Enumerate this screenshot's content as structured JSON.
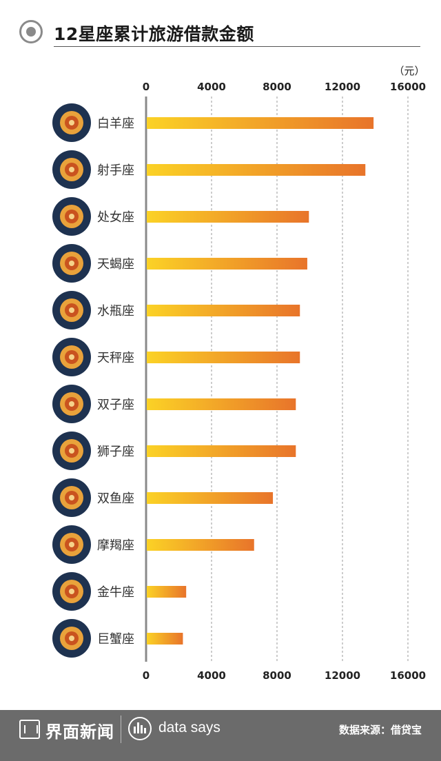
{
  "header": {
    "title": "12星座累计旅游借款金额"
  },
  "chart_data": {
    "type": "bar",
    "orientation": "horizontal",
    "title": "12星座累计旅游借款金额",
    "unit": "（元）",
    "xlim": [
      0,
      16000
    ],
    "ticks": [
      "0",
      "4000",
      "8000",
      "12000",
      "16000"
    ],
    "grid": true,
    "categories": [
      "白羊座",
      "射手座",
      "处女座",
      "天蝎座",
      "水瓶座",
      "天秤座",
      "双子座",
      "狮子座",
      "双鱼座",
      "摩羯座",
      "金牛座",
      "巨蟹座"
    ],
    "icons": [
      "aries-icon",
      "sagittarius-icon",
      "virgo-icon",
      "scorpio-icon",
      "aquarius-icon",
      "libra-icon",
      "gemini-icon",
      "leo-icon",
      "pisces-icon",
      "capricorn-icon",
      "taurus-icon",
      "cancer-icon"
    ],
    "values": [
      13900,
      13400,
      9950,
      9850,
      9400,
      9400,
      9150,
      9150,
      7750,
      6600,
      2450,
      2250
    ],
    "colors": {
      "bar_start": "#fbd226",
      "bar_end": "#e8742a",
      "icon_bg": "#1e3250",
      "axis": "#8a8a8a",
      "grid": "#9a9a9a"
    }
  },
  "footer": {
    "brand": "界面新闻",
    "tagline": "data says",
    "source": "数据来源：借贷宝"
  }
}
